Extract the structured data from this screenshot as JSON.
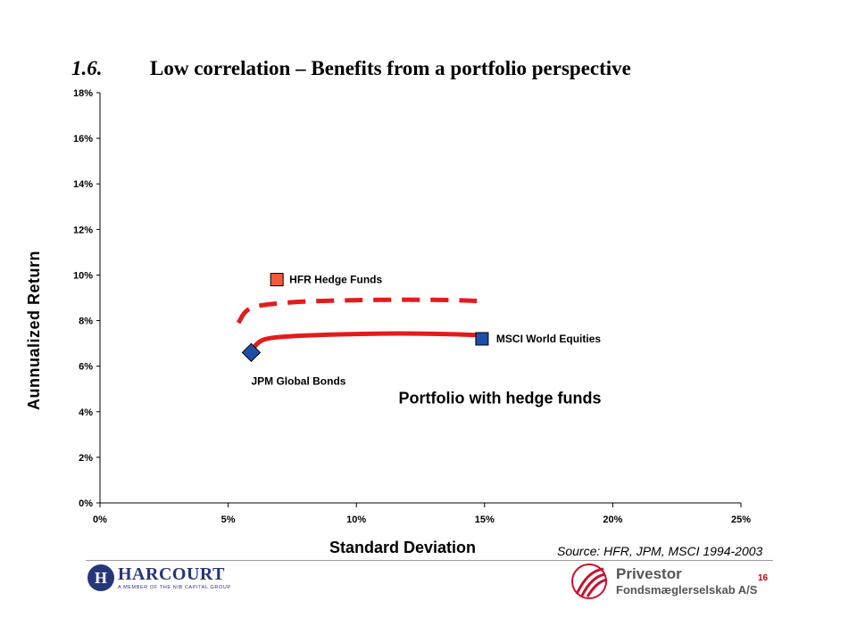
{
  "slide": {
    "number": "1.6.",
    "title": "Low correlation – Benefits from a portfolio perspective",
    "source": "Source: HFR, JPM, MSCI 1994-2003",
    "page": "16"
  },
  "chart_data": {
    "type": "scatter",
    "title": "",
    "xlabel": "Standard Deviation",
    "ylabel": "Aunnualized Return",
    "xlim": [
      0,
      25
    ],
    "ylim": [
      0,
      18
    ],
    "x_ticks": [
      "0%",
      "5%",
      "10%",
      "15%",
      "20%",
      "25%"
    ],
    "y_ticks": [
      "0%",
      "2%",
      "4%",
      "6%",
      "8%",
      "10%",
      "12%",
      "14%",
      "16%",
      "18%"
    ],
    "x_tick_values": [
      0,
      5,
      10,
      15,
      20,
      25
    ],
    "y_tick_values": [
      0,
      2,
      4,
      6,
      8,
      10,
      12,
      14,
      16,
      18
    ],
    "points": [
      {
        "name": "HFR Hedge Funds",
        "x": 6.9,
        "y": 9.8,
        "marker": "square",
        "color": "#f05a3c"
      },
      {
        "name": "MSCI World Equities",
        "x": 14.9,
        "y": 7.2,
        "marker": "square",
        "color": "#1f4ea8"
      },
      {
        "name": "JPM Global Bonds",
        "x": 5.9,
        "y": 6.6,
        "marker": "diamond",
        "color": "#1f4ea8"
      }
    ],
    "curves": [
      {
        "name": "Portfolio with hedge funds",
        "style": "dashed",
        "color": "#e41b1b",
        "points": [
          [
            5.4,
            7.9
          ],
          [
            5.7,
            8.5
          ],
          [
            6.3,
            8.7
          ],
          [
            8,
            8.85
          ],
          [
            10,
            8.9
          ],
          [
            12,
            8.92
          ],
          [
            14,
            8.9
          ],
          [
            14.9,
            8.85
          ]
        ]
      },
      {
        "name": "",
        "style": "solid",
        "color": "#e41b1b",
        "points": [
          [
            5.9,
            6.6
          ],
          [
            6.1,
            7.0
          ],
          [
            6.5,
            7.25
          ],
          [
            8,
            7.35
          ],
          [
            10,
            7.42
          ],
          [
            12,
            7.44
          ],
          [
            14,
            7.4
          ],
          [
            14.9,
            7.35
          ]
        ]
      }
    ],
    "annotations": [
      {
        "text": "Portfolio with hedge funds",
        "x": 15.6,
        "y": 4.6
      }
    ],
    "grid": false,
    "legend": "none"
  },
  "logos": {
    "harcourt": {
      "mark": "H",
      "name": "HARCOURT",
      "tagline": "A MEMBER OF THE NIB CAPITAL GROUP"
    },
    "privestor": {
      "name": "Privestor",
      "subtitle": "Fondsmæglerselskab A/S"
    }
  }
}
